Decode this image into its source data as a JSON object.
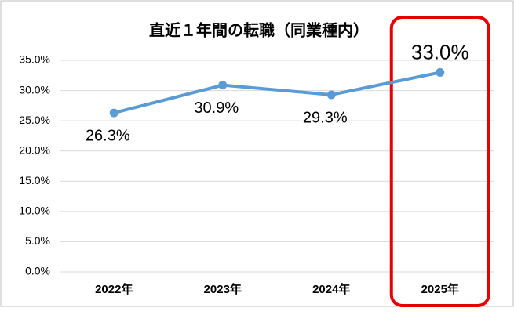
{
  "chart_data": {
    "type": "line",
    "title": "直近１年間の転職（同業種内）",
    "categories": [
      "2022年",
      "2023年",
      "2024年",
      "2025年"
    ],
    "values": [
      26.3,
      30.9,
      29.3,
      33.0
    ],
    "value_labels": [
      "26.3%",
      "30.9%",
      "29.3%",
      "33.0%"
    ],
    "color": "#5b9bd5",
    "ylim": [
      0,
      35
    ],
    "yticks": [
      {
        "value": 0,
        "label": "0.0%"
      },
      {
        "value": 5,
        "label": "5.0%"
      },
      {
        "value": 10,
        "label": "10.0%"
      },
      {
        "value": 15,
        "label": "15.0%"
      },
      {
        "value": 20,
        "label": "20.0%"
      },
      {
        "value": 25,
        "label": "25.0%"
      },
      {
        "value": 30,
        "label": "30.0%"
      },
      {
        "value": 35,
        "label": "35.0%"
      }
    ],
    "grid": true
  }
}
